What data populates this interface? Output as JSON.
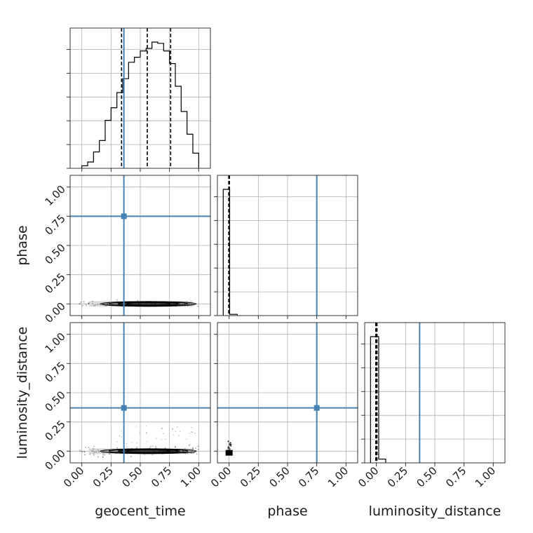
{
  "chart_data": {
    "type": "corner",
    "parameters": [
      "geocent_time",
      "phase",
      "luminosity_distance"
    ],
    "truth": {
      "geocent_time": 0.36,
      "phase": 0.75,
      "luminosity_distance": 0.37
    },
    "axis_range": [
      -0.1,
      1.1
    ],
    "ticks": [
      0.0,
      0.25,
      0.5,
      0.75,
      1.0
    ],
    "tick_labels": [
      "0.00",
      "0.25",
      "0.50",
      "0.75",
      "1.00"
    ],
    "colors": {
      "truth": "#4682b4",
      "hist": "#000000",
      "grid": "#b0b0b0"
    },
    "hist_geocent_time": {
      "bin_edges": [
        0.0,
        0.05,
        0.1,
        0.15,
        0.2,
        0.25,
        0.3,
        0.35,
        0.4,
        0.45,
        0.5,
        0.55,
        0.6,
        0.65,
        0.7,
        0.75,
        0.8,
        0.85,
        0.9,
        0.95,
        1.0
      ],
      "counts": [
        0.02,
        0.05,
        0.13,
        0.22,
        0.38,
        0.48,
        0.6,
        0.71,
        0.84,
        0.88,
        0.93,
        0.95,
        1.0,
        0.99,
        0.93,
        0.83,
        0.65,
        0.45,
        0.27,
        0.12
      ],
      "quantiles": [
        0.34,
        0.56,
        0.76
      ]
    },
    "hist_phase": {
      "bin_edges": [
        -0.05,
        0.0,
        0.05,
        0.1
      ],
      "counts": [
        1.0,
        1.0,
        0.01
      ],
      "quantiles": [
        -0.005,
        0.0,
        0.005
      ]
    },
    "hist_luminosity_distance": {
      "bin_edges": [
        -0.05,
        0.0,
        0.05,
        0.1
      ],
      "counts": [
        1.0,
        1.0,
        0.03
      ],
      "quantiles": [
        -0.01,
        0.0,
        0.01
      ]
    },
    "scatter_phase_vs_geocent_time": {
      "x_range": [
        -0.02,
        1.0
      ],
      "y_center": 0.0,
      "y_spread": 0.01
    },
    "scatter_luminosity_distance_vs_geocent_time": {
      "x_range": [
        -0.02,
        1.0
      ],
      "y_center": 0.0,
      "y_spread": 0.02
    },
    "scatter_luminosity_distance_vs_phase": {
      "x_range": [
        -0.03,
        0.02
      ],
      "y_range": [
        -0.03,
        0.05
      ]
    }
  }
}
